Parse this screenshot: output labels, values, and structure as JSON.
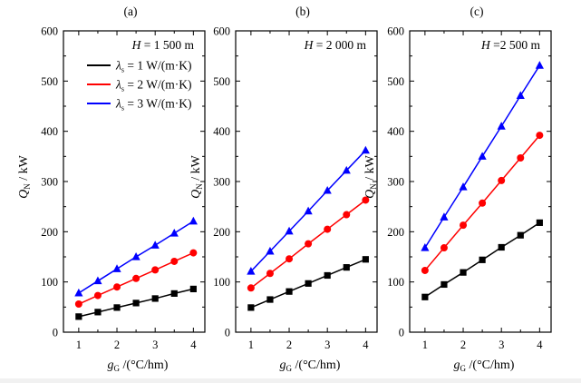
{
  "chart_data": [
    {
      "type": "line",
      "panel_label": "(a)",
      "annotation": {
        "var": "H",
        "rest": " = 1 500 m"
      },
      "x": [
        1,
        1.5,
        2,
        2.5,
        3,
        3.5,
        4
      ],
      "x_ticks": [
        "1",
        "2",
        "3",
        "4"
      ],
      "xlim": [
        0.6,
        4.3
      ],
      "ylim": [
        0,
        600
      ],
      "y_ticks": [
        "0",
        "100",
        "200",
        "300",
        "400",
        "500",
        "600"
      ],
      "xlabel": {
        "var": "g",
        "sub": "G",
        "rest": " /(°C/hm)"
      },
      "ylabel": {
        "var": "Q",
        "sub": "N",
        "rest": " / kW"
      },
      "legend": "top-left",
      "series": [
        {
          "name": "λ",
          "sub": "s",
          "unit": " = 1 W/(m·K)",
          "color": "#000000",
          "marker": "square",
          "values": [
            31,
            40,
            49,
            58,
            67,
            77,
            86
          ]
        },
        {
          "name": "λ",
          "sub": "s",
          "unit": " = 2 W/(m·K)",
          "color": "#ff0000",
          "marker": "circle",
          "values": [
            56,
            73,
            90,
            107,
            124,
            141,
            158
          ]
        },
        {
          "name": "λ",
          "sub": "s",
          "unit": " = 3 W/(m·K)",
          "color": "#0000ff",
          "marker": "triangle",
          "values": [
            78,
            102,
            126,
            150,
            173,
            197,
            221
          ]
        }
      ]
    },
    {
      "type": "line",
      "panel_label": "(b)",
      "annotation": {
        "var": "H",
        "rest": " = 2 000 m"
      },
      "x": [
        1,
        1.5,
        2,
        2.5,
        3,
        3.5,
        4
      ],
      "x_ticks": [
        "1",
        "2",
        "3",
        "4"
      ],
      "xlim": [
        0.6,
        4.3
      ],
      "ylim": [
        0,
        600
      ],
      "y_ticks": [
        "0",
        "100",
        "200",
        "300",
        "400",
        "500",
        "600"
      ],
      "xlabel": {
        "var": "g",
        "sub": "G",
        "rest": " /(°C/hm)"
      },
      "ylabel": {
        "var": "Q",
        "sub": "N",
        "rest": " / kW"
      },
      "series": [
        {
          "name": "λ",
          "sub": "s",
          "unit": " = 1 W/(m·K)",
          "color": "#000000",
          "marker": "square",
          "values": [
            49,
            65,
            81,
            97,
            113,
            129,
            145
          ]
        },
        {
          "name": "λ",
          "sub": "s",
          "unit": " = 2 W/(m·K)",
          "color": "#ff0000",
          "marker": "circle",
          "values": [
            88,
            117,
            146,
            176,
            205,
            234,
            263
          ]
        },
        {
          "name": "λ",
          "sub": "s",
          "unit": " = 3 W/(m·K)",
          "color": "#0000ff",
          "marker": "triangle",
          "values": [
            121,
            161,
            201,
            241,
            282,
            322,
            362
          ]
        }
      ]
    },
    {
      "type": "line",
      "panel_label": "(c)",
      "annotation": {
        "var": "H",
        "rest": " =2 500 m"
      },
      "x": [
        1,
        1.5,
        2,
        2.5,
        3,
        3.5,
        4
      ],
      "x_ticks": [
        "1",
        "2",
        "3",
        "4"
      ],
      "xlim": [
        0.6,
        4.3
      ],
      "ylim": [
        0,
        600
      ],
      "y_ticks": [
        "0",
        "100",
        "200",
        "300",
        "400",
        "500",
        "600"
      ],
      "xlabel": {
        "var": "g",
        "sub": "G",
        "rest": " /(°C/hm)"
      },
      "ylabel": {
        "var": "Q",
        "sub": "N",
        "rest": " / kW"
      },
      "series": [
        {
          "name": "λ",
          "sub": "s",
          "unit": " = 1 W/(m·K)",
          "color": "#000000",
          "marker": "square",
          "values": [
            70,
            95,
            119,
            144,
            169,
            193,
            218
          ]
        },
        {
          "name": "λ",
          "sub": "s",
          "unit": " = 2 W/(m·K)",
          "color": "#ff0000",
          "marker": "circle",
          "values": [
            123,
            168,
            213,
            257,
            302,
            347,
            392
          ]
        },
        {
          "name": "λ",
          "sub": "s",
          "unit": " = 3 W/(m·K)",
          "color": "#0000ff",
          "marker": "triangle",
          "values": [
            168,
            229,
            289,
            350,
            410,
            471,
            531
          ]
        }
      ]
    }
  ]
}
